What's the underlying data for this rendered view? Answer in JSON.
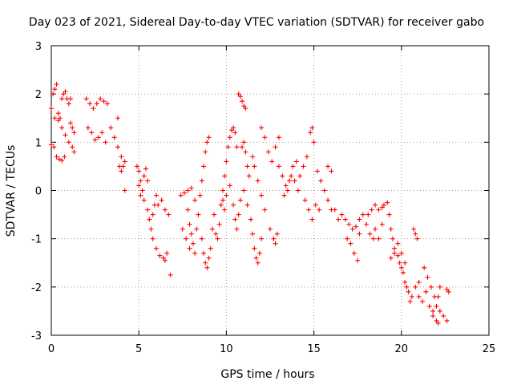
{
  "chart_data": {
    "type": "scatter",
    "title": "Day 023 of 2021, Sidereal Day-to-day VTEC variation (SDTVAR) for receiver gabo",
    "xlabel": "GPS time / hours",
    "ylabel": "SDTVAR / TECUs",
    "xlim": [
      0,
      25
    ],
    "ylim": [
      -3,
      3
    ],
    "xticks": [
      0,
      5,
      10,
      15,
      20,
      25
    ],
    "yticks": [
      -3,
      -2,
      -1,
      0,
      1,
      2,
      3
    ],
    "grid": true,
    "marker": "+",
    "color": "#ff0000",
    "series": [
      {
        "name": "SDTVAR",
        "points": [
          [
            0.0,
            1.7
          ],
          [
            0.1,
            2.0
          ],
          [
            0.2,
            2.1
          ],
          [
            0.3,
            2.2
          ],
          [
            0.4,
            1.6
          ],
          [
            0.5,
            1.5
          ],
          [
            0.6,
            1.9
          ],
          [
            0.7,
            2.0
          ],
          [
            0.8,
            2.05
          ],
          [
            0.9,
            1.9
          ],
          [
            1.0,
            1.8
          ],
          [
            1.1,
            1.9
          ],
          [
            0.0,
            0.95
          ],
          [
            0.15,
            0.9
          ],
          [
            0.3,
            0.7
          ],
          [
            0.45,
            0.65
          ],
          [
            0.6,
            0.62
          ],
          [
            0.75,
            0.7
          ],
          [
            0.2,
            1.5
          ],
          [
            0.4,
            1.45
          ],
          [
            0.6,
            1.3
          ],
          [
            0.8,
            1.15
          ],
          [
            1.0,
            1.0
          ],
          [
            1.2,
            0.9
          ],
          [
            1.3,
            0.8
          ],
          [
            1.1,
            1.4
          ],
          [
            1.2,
            1.3
          ],
          [
            1.3,
            1.2
          ],
          [
            2.0,
            1.9
          ],
          [
            2.2,
            1.8
          ],
          [
            2.4,
            1.7
          ],
          [
            2.6,
            1.8
          ],
          [
            2.8,
            1.9
          ],
          [
            3.0,
            1.85
          ],
          [
            3.2,
            1.8
          ],
          [
            2.1,
            1.3
          ],
          [
            2.3,
            1.2
          ],
          [
            2.5,
            1.05
          ],
          [
            2.7,
            1.1
          ],
          [
            2.9,
            1.2
          ],
          [
            3.1,
            1.0
          ],
          [
            3.4,
            1.3
          ],
          [
            3.6,
            1.1
          ],
          [
            3.8,
            0.9
          ],
          [
            4.0,
            0.7
          ],
          [
            3.9,
            0.5
          ],
          [
            4.0,
            0.4
          ],
          [
            4.1,
            0.5
          ],
          [
            4.2,
            0.6
          ],
          [
            3.8,
            1.5
          ],
          [
            4.2,
            0.0
          ],
          [
            4.9,
            0.5
          ],
          [
            5.0,
            0.4
          ],
          [
            5.1,
            0.2
          ],
          [
            5.2,
            0.0
          ],
          [
            5.3,
            0.3
          ],
          [
            5.4,
            0.45
          ],
          [
            5.5,
            0.2
          ],
          [
            5.0,
            0.1
          ],
          [
            5.1,
            -0.1
          ],
          [
            5.3,
            -0.2
          ],
          [
            5.5,
            -0.4
          ],
          [
            5.6,
            -0.6
          ],
          [
            5.7,
            -0.8
          ],
          [
            5.8,
            -0.5
          ],
          [
            5.9,
            -0.3
          ],
          [
            6.0,
            -0.1
          ],
          [
            6.1,
            -0.3
          ],
          [
            5.8,
            -1.0
          ],
          [
            6.0,
            -1.2
          ],
          [
            6.2,
            -1.35
          ],
          [
            6.4,
            -1.4
          ],
          [
            6.6,
            -1.3
          ],
          [
            6.5,
            -1.45
          ],
          [
            6.3,
            -0.2
          ],
          [
            6.5,
            -0.4
          ],
          [
            6.7,
            -0.5
          ],
          [
            6.8,
            -1.75
          ],
          [
            7.4,
            -0.1
          ],
          [
            7.6,
            -0.05
          ],
          [
            7.8,
            0.0
          ],
          [
            8.0,
            0.05
          ],
          [
            8.2,
            -0.2
          ],
          [
            7.8,
            -0.4
          ],
          [
            7.9,
            -0.7
          ],
          [
            8.0,
            -0.9
          ],
          [
            8.1,
            -1.1
          ],
          [
            8.2,
            -1.3
          ],
          [
            7.5,
            -0.8
          ],
          [
            7.7,
            -1.0
          ],
          [
            7.9,
            -1.2
          ],
          [
            8.3,
            -0.8
          ],
          [
            8.4,
            -0.5
          ],
          [
            8.5,
            -0.1
          ],
          [
            8.6,
            0.2
          ],
          [
            8.7,
            0.5
          ],
          [
            8.8,
            0.8
          ],
          [
            8.9,
            1.0
          ],
          [
            9.0,
            1.1
          ],
          [
            8.6,
            -1.0
          ],
          [
            8.7,
            -1.3
          ],
          [
            8.8,
            -1.5
          ],
          [
            8.9,
            -1.6
          ],
          [
            9.0,
            -1.4
          ],
          [
            9.1,
            -1.2
          ],
          [
            9.2,
            -0.8
          ],
          [
            9.3,
            -0.5
          ],
          [
            9.4,
            -0.9
          ],
          [
            9.5,
            -1.0
          ],
          [
            9.6,
            -0.7
          ],
          [
            9.7,
            -0.3
          ],
          [
            9.8,
            0.0
          ],
          [
            9.9,
            0.3
          ],
          [
            10.0,
            0.6
          ],
          [
            10.1,
            0.9
          ],
          [
            10.2,
            1.1
          ],
          [
            10.3,
            1.25
          ],
          [
            10.4,
            1.3
          ],
          [
            10.5,
            1.2
          ],
          [
            10.6,
            0.9
          ],
          [
            9.8,
            -0.2
          ],
          [
            9.9,
            -0.4
          ],
          [
            10.0,
            -0.1
          ],
          [
            10.2,
            0.1
          ],
          [
            10.4,
            -0.3
          ],
          [
            10.5,
            -0.6
          ],
          [
            10.6,
            -0.8
          ],
          [
            10.7,
            -0.5
          ],
          [
            10.8,
            -0.2
          ],
          [
            10.7,
            2.0
          ],
          [
            10.8,
            1.95
          ],
          [
            10.9,
            1.85
          ],
          [
            11.0,
            1.75
          ],
          [
            11.1,
            1.7
          ],
          [
            10.9,
            0.9
          ],
          [
            11.0,
            1.0
          ],
          [
            11.1,
            0.8
          ],
          [
            11.2,
            0.5
          ],
          [
            11.3,
            0.3
          ],
          [
            11.0,
            0.0
          ],
          [
            11.2,
            -0.3
          ],
          [
            11.4,
            -0.6
          ],
          [
            11.5,
            -0.9
          ],
          [
            11.6,
            -1.2
          ],
          [
            11.7,
            -1.4
          ],
          [
            11.8,
            -1.5
          ],
          [
            11.9,
            -1.3
          ],
          [
            12.0,
            -1.0
          ],
          [
            11.5,
            0.7
          ],
          [
            11.6,
            0.5
          ],
          [
            11.8,
            0.2
          ],
          [
            12.0,
            -0.1
          ],
          [
            12.2,
            -0.4
          ],
          [
            12.0,
            1.3
          ],
          [
            12.2,
            1.1
          ],
          [
            12.4,
            0.8
          ],
          [
            12.6,
            0.6
          ],
          [
            12.8,
            0.9
          ],
          [
            13.0,
            1.1
          ],
          [
            12.5,
            -0.8
          ],
          [
            12.7,
            -1.0
          ],
          [
            12.8,
            -1.1
          ],
          [
            12.9,
            -0.9
          ],
          [
            13.0,
            0.5
          ],
          [
            13.2,
            0.3
          ],
          [
            13.4,
            0.1
          ],
          [
            13.6,
            0.2
          ],
          [
            13.8,
            0.5
          ],
          [
            14.0,
            0.6
          ],
          [
            13.3,
            -0.1
          ],
          [
            13.5,
            0.0
          ],
          [
            13.7,
            0.3
          ],
          [
            13.9,
            0.2
          ],
          [
            14.1,
            0.0
          ],
          [
            14.2,
            0.3
          ],
          [
            14.4,
            0.5
          ],
          [
            14.6,
            0.7
          ],
          [
            14.8,
            1.2
          ],
          [
            14.9,
            1.3
          ],
          [
            15.0,
            1.0
          ],
          [
            14.5,
            -0.2
          ],
          [
            14.7,
            -0.4
          ],
          [
            14.9,
            -0.6
          ],
          [
            15.1,
            -0.3
          ],
          [
            15.3,
            -0.4
          ],
          [
            15.2,
            0.4
          ],
          [
            15.4,
            0.2
          ],
          [
            15.6,
            0.0
          ],
          [
            15.8,
            -0.2
          ],
          [
            16.0,
            -0.4
          ],
          [
            15.8,
            0.5
          ],
          [
            16.0,
            0.4
          ],
          [
            16.2,
            -0.4
          ],
          [
            16.4,
            -0.6
          ],
          [
            16.6,
            -0.5
          ],
          [
            16.8,
            -0.6
          ],
          [
            17.0,
            -0.7
          ],
          [
            17.2,
            -0.8
          ],
          [
            17.4,
            -0.75
          ],
          [
            17.6,
            -0.9
          ],
          [
            16.9,
            -1.0
          ],
          [
            17.1,
            -1.1
          ],
          [
            17.3,
            -1.3
          ],
          [
            17.5,
            -1.45
          ],
          [
            17.6,
            -0.6
          ],
          [
            17.8,
            -0.5
          ],
          [
            18.0,
            -0.7
          ],
          [
            18.2,
            -0.9
          ],
          [
            18.4,
            -1.0
          ],
          [
            18.1,
            -0.5
          ],
          [
            18.3,
            -0.4
          ],
          [
            18.5,
            -0.3
          ],
          [
            18.7,
            -0.4
          ],
          [
            18.9,
            -0.35
          ],
          [
            18.5,
            -0.8
          ],
          [
            18.7,
            -1.0
          ],
          [
            18.9,
            -0.7
          ],
          [
            19.0,
            -0.3
          ],
          [
            19.2,
            -0.25
          ],
          [
            19.3,
            -0.5
          ],
          [
            19.4,
            -0.8
          ],
          [
            19.5,
            -1.0
          ],
          [
            19.6,
            -1.2
          ],
          [
            19.8,
            -1.35
          ],
          [
            19.9,
            -1.5
          ],
          [
            20.0,
            -1.6
          ],
          [
            20.1,
            -1.7
          ],
          [
            20.2,
            -1.9
          ],
          [
            20.3,
            -2.0
          ],
          [
            19.4,
            -1.4
          ],
          [
            19.6,
            -1.3
          ],
          [
            19.8,
            -1.1
          ],
          [
            20.0,
            -1.3
          ],
          [
            20.2,
            -1.5
          ],
          [
            20.4,
            -2.1
          ],
          [
            20.5,
            -2.3
          ],
          [
            20.6,
            -2.2
          ],
          [
            20.8,
            -2.0
          ],
          [
            21.0,
            -1.9
          ],
          [
            21.0,
            -2.2
          ],
          [
            21.2,
            -2.3
          ],
          [
            21.4,
            -2.1
          ],
          [
            21.6,
            -2.4
          ],
          [
            21.8,
            -2.5
          ],
          [
            21.3,
            -1.6
          ],
          [
            21.5,
            -1.8
          ],
          [
            21.7,
            -2.0
          ],
          [
            21.9,
            -2.2
          ],
          [
            21.8,
            -2.6
          ],
          [
            22.0,
            -2.7
          ],
          [
            22.1,
            -2.75
          ],
          [
            22.2,
            -2.5
          ],
          [
            22.0,
            -2.4
          ],
          [
            22.1,
            -2.2
          ],
          [
            22.2,
            -2.0
          ],
          [
            22.4,
            -2.6
          ],
          [
            22.6,
            -2.7
          ],
          [
            20.7,
            -0.8
          ],
          [
            20.8,
            -0.9
          ],
          [
            20.9,
            -1.0
          ],
          [
            22.6,
            -2.05
          ],
          [
            22.7,
            -2.1
          ]
        ]
      }
    ]
  }
}
